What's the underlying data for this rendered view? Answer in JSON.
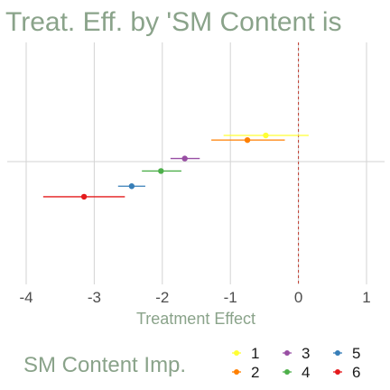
{
  "chart_data": {
    "type": "scatter",
    "title": "Treat. Eff. by 'SM Content is",
    "xlabel": "Treatment Effect",
    "ylabel": "",
    "xlim": [
      -4.25,
      1.25
    ],
    "xticks": [
      "-4",
      "-3",
      "-2",
      "-1",
      "0",
      "1"
    ],
    "reference_line": {
      "x": 0,
      "style": "dashed",
      "color": "#c0392b"
    },
    "grid": true,
    "legend_title": "SM Content Imp.",
    "legend_position": "bottom",
    "series": [
      {
        "name": "1",
        "estimate": -0.48,
        "ci": [
          -1.1,
          0.15
        ],
        "color": "#ffff33",
        "row": 0.55
      },
      {
        "name": "2",
        "estimate": -0.75,
        "ci": [
          -1.28,
          -0.2
        ],
        "color": "#ff7f00",
        "row": 0.9
      },
      {
        "name": "3",
        "estimate": -1.67,
        "ci": [
          -1.88,
          -1.45
        ],
        "color": "#984ea3",
        "row": 2.3
      },
      {
        "name": "4",
        "estimate": -2.02,
        "ci": [
          -2.3,
          -1.72
        ],
        "color": "#4daf4a",
        "row": 3.25
      },
      {
        "name": "5",
        "estimate": -2.45,
        "ci": [
          -2.65,
          -2.25
        ],
        "color": "#377eb8",
        "row": 4.4
      },
      {
        "name": "6",
        "estimate": -3.15,
        "ci": [
          -3.75,
          -2.55
        ],
        "color": "#e41a1c",
        "row": 5.2
      }
    ]
  }
}
